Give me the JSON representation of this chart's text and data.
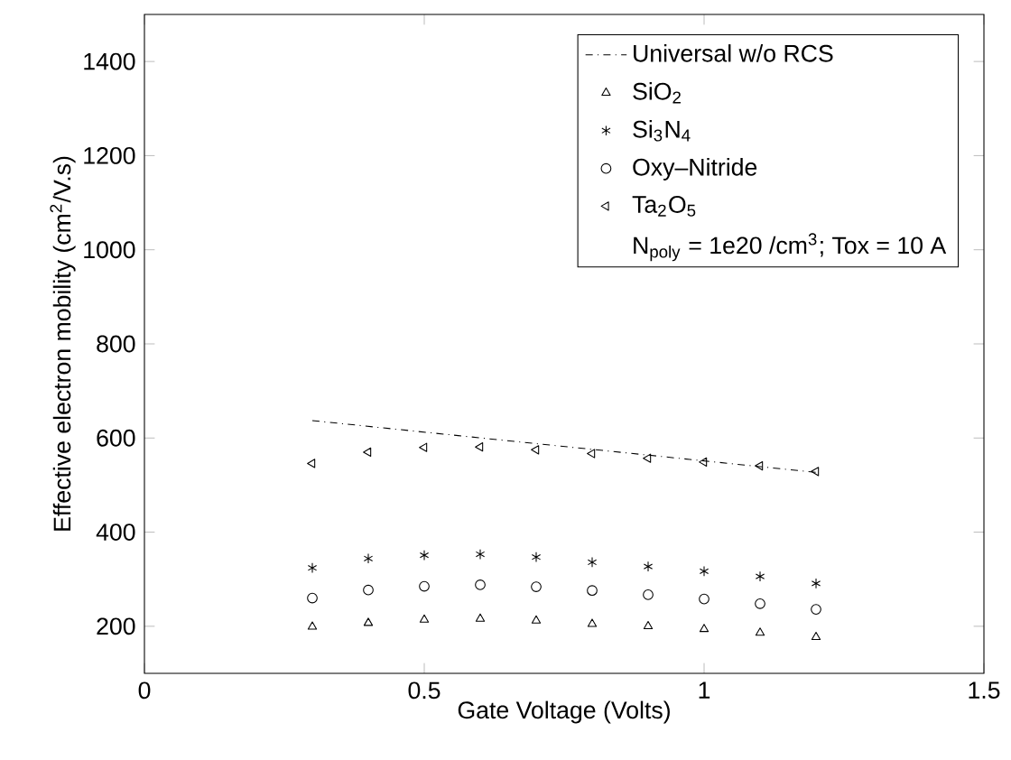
{
  "chart_data": {
    "type": "scatter",
    "xlabel": "Gate Voltage (Volts)",
    "ylabel": "Effective electron mobility (cm$^{2}$/V.s)",
    "xlim": [
      0,
      1.5
    ],
    "xticks": [
      0,
      0.5,
      1,
      1.5
    ],
    "ylim": [
      100,
      1500
    ],
    "yticks": [
      200,
      400,
      600,
      800,
      1000,
      1200,
      1400
    ],
    "legend": "top right",
    "grid": false,
    "annotations": [
      "N$_{poly}$ = 1e20 /cm$^{3}$; Tox = 10 A"
    ],
    "series": [
      {
        "name": "Universal w/o RCS",
        "type": "line",
        "line_style": "dashdot",
        "marker": "none",
        "color": "#000000",
        "x": [
          0.3,
          1.2
        ],
        "values": [
          637,
          527
        ]
      },
      {
        "name": "SiO$_{2}$",
        "marker": "triangle",
        "color": "#000000",
        "x": [
          0.3,
          0.4,
          0.5,
          0.6,
          0.7,
          0.8,
          0.9,
          1.0,
          1.1,
          1.2
        ],
        "values": [
          199,
          207,
          214,
          216,
          212,
          205,
          200,
          194,
          186,
          177
        ]
      },
      {
        "name": "Si$_{3}$N$_{4}$",
        "marker": "cross",
        "color": "#000000",
        "x": [
          0.3,
          0.4,
          0.5,
          0.6,
          0.7,
          0.8,
          0.9,
          1.0,
          1.1,
          1.2
        ],
        "values": [
          324,
          344,
          351,
          353,
          347,
          336,
          327,
          317,
          306,
          291
        ]
      },
      {
        "name": "Oxy–Nitride",
        "marker": "circle",
        "color": "#000000",
        "x": [
          0.3,
          0.4,
          0.5,
          0.6,
          0.7,
          0.8,
          0.9,
          1.0,
          1.1,
          1.2
        ],
        "values": [
          260,
          277,
          285,
          288,
          284,
          276,
          267,
          258,
          248,
          236
        ]
      },
      {
        "name": "Ta$_{2}$O$_{5}$",
        "marker": "triangle-left",
        "color": "#000000",
        "x": [
          0.3,
          0.4,
          0.5,
          0.6,
          0.7,
          0.8,
          0.9,
          1.0,
          1.1,
          1.2
        ],
        "values": [
          546,
          570,
          580,
          581,
          575,
          567,
          557,
          549,
          541,
          529
        ]
      }
    ]
  }
}
